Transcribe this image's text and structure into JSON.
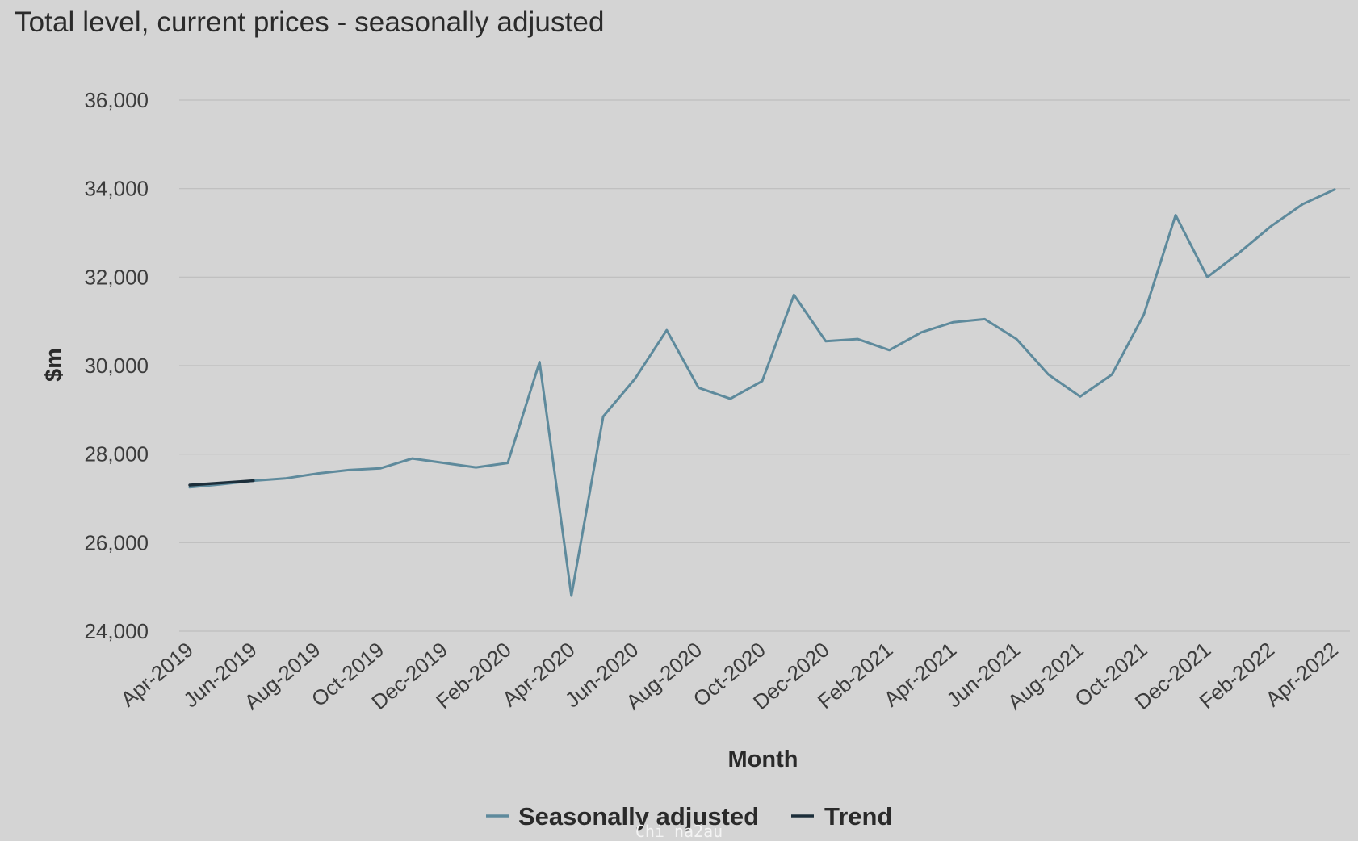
{
  "chart_data": {
    "type": "line",
    "title": "Total level, current prices - seasonally adjusted",
    "xlabel": "Month",
    "ylabel": "$m",
    "ylim": [
      24000,
      36000
    ],
    "y_ticks": [
      24000,
      26000,
      28000,
      30000,
      32000,
      34000,
      36000
    ],
    "y_tick_labels": [
      "24,000",
      "26,000",
      "28,000",
      "30,000",
      "32,000",
      "34,000",
      "36,000"
    ],
    "grid": true,
    "legend_position": "bottom",
    "x": [
      "Apr-2019",
      "May-2019",
      "Jun-2019",
      "Jul-2019",
      "Aug-2019",
      "Sep-2019",
      "Oct-2019",
      "Nov-2019",
      "Dec-2019",
      "Jan-2020",
      "Feb-2020",
      "Mar-2020",
      "Apr-2020",
      "May-2020",
      "Jun-2020",
      "Jul-2020",
      "Aug-2020",
      "Sep-2020",
      "Oct-2020",
      "Nov-2020",
      "Dec-2020",
      "Jan-2021",
      "Feb-2021",
      "Mar-2021",
      "Apr-2021",
      "May-2021",
      "Jun-2021",
      "Jul-2021",
      "Aug-2021",
      "Sep-2021",
      "Oct-2021",
      "Nov-2021",
      "Dec-2021",
      "Jan-2022",
      "Feb-2022",
      "Mar-2022",
      "Apr-2022"
    ],
    "x_tick_labels": [
      "Apr-2019",
      "Jun-2019",
      "Aug-2019",
      "Oct-2019",
      "Dec-2019",
      "Feb-2020",
      "Apr-2020",
      "Jun-2020",
      "Aug-2020",
      "Oct-2020",
      "Dec-2020",
      "Feb-2021",
      "Apr-2021",
      "Jun-2021",
      "Aug-2021",
      "Oct-2021",
      "Dec-2021",
      "Feb-2022",
      "Apr-2022"
    ],
    "series": [
      {
        "name": "Seasonally adjusted",
        "color": "#5e8a9c",
        "values": [
          27250,
          27320,
          27400,
          27450,
          27560,
          27640,
          27680,
          27900,
          27800,
          27700,
          27800,
          30080,
          24800,
          28850,
          29700,
          30800,
          29500,
          29250,
          29650,
          31600,
          30550,
          30600,
          30350,
          30750,
          30980,
          31050,
          30600,
          29800,
          29300,
          29800,
          31150,
          33400,
          32000,
          32550,
          33150,
          33650,
          33980
        ]
      },
      {
        "name": "Trend",
        "color": "#1c2e3a",
        "values": [
          27300,
          27350,
          27400,
          null,
          null,
          null,
          null,
          null,
          null,
          null,
          null,
          null,
          null,
          null,
          null,
          null,
          null,
          null,
          null,
          null,
          null,
          null,
          null,
          null,
          null,
          null,
          null,
          null,
          null,
          null,
          null,
          null,
          null,
          null,
          null,
          null,
          null
        ]
      }
    ]
  },
  "watermark": "Chi na2au"
}
